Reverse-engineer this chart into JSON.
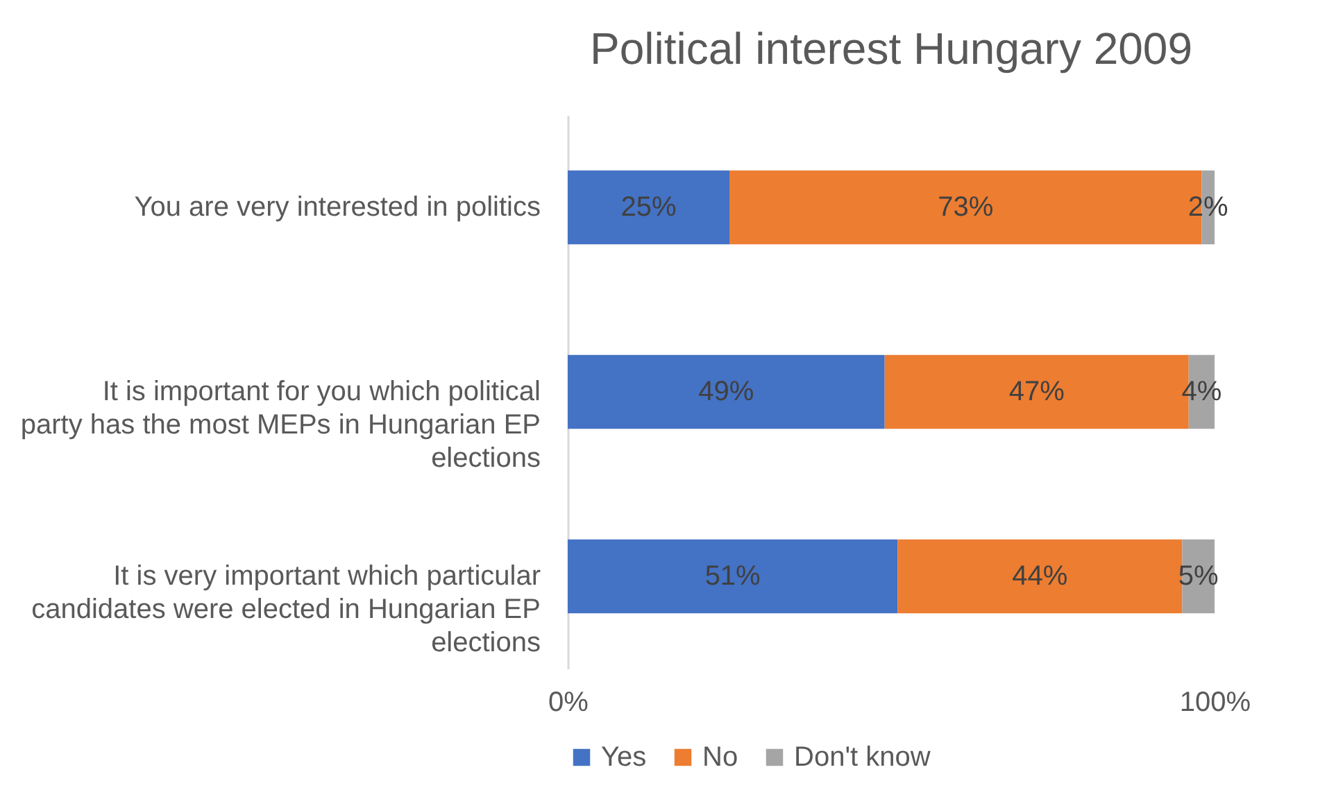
{
  "chart_data": {
    "type": "bar",
    "title": "Political interest Hungary 2009",
    "orientation": "horizontal",
    "stacked": true,
    "categories": [
      "You are very interested in politics",
      "It is important for you which political party has the most MEPs in Hungarian EP elections",
      "It is very important which particular candidates were elected in Hungarian EP elections"
    ],
    "series": [
      {
        "name": "Yes",
        "color": "#4472c4",
        "values": [
          25,
          49,
          51
        ],
        "value_labels": [
          "25%",
          "49%",
          "51%"
        ]
      },
      {
        "name": "No",
        "color": "#ed7d31",
        "values": [
          73,
          47,
          44
        ],
        "value_labels": [
          "73%",
          "47%",
          "44%"
        ]
      },
      {
        "name": "Don't know",
        "color": "#a5a5a5",
        "values": [
          2,
          4,
          5
        ],
        "value_labels": [
          "2%",
          "4%",
          "5%"
        ]
      }
    ],
    "xlim": [
      0,
      100
    ],
    "xticks": [
      {
        "value": 0,
        "label": "0%"
      },
      {
        "value": 100,
        "label": "100%"
      }
    ],
    "legend": "bottom"
  }
}
